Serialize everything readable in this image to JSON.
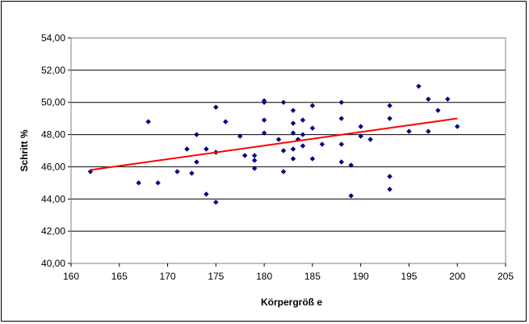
{
  "chart_data": {
    "type": "scatter",
    "title": "",
    "xlabel": "Körpergröß e",
    "ylabel": "Schritt %",
    "xlim": [
      160,
      205
    ],
    "ylim": [
      40,
      54
    ],
    "xticks": [
      "160",
      "165",
      "170",
      "175",
      "180",
      "185",
      "190",
      "195",
      "200",
      "205"
    ],
    "yticks": [
      "40,00",
      "42,00",
      "44,00",
      "46,00",
      "48,00",
      "50,00",
      "52,00",
      "54,00"
    ],
    "grid": "horizontal",
    "legend": "none",
    "marker_color": "#000080",
    "trendline_color": "#ff0000",
    "series": [
      {
        "points": [
          [
            162,
            45.7
          ],
          [
            167,
            45.0
          ],
          [
            168,
            48.8
          ],
          [
            169,
            45.0
          ],
          [
            171,
            45.7
          ],
          [
            172,
            47.1
          ],
          [
            172.5,
            45.6
          ],
          [
            173,
            46.3
          ],
          [
            173,
            48.0
          ],
          [
            174,
            47.1
          ],
          [
            174,
            44.3
          ],
          [
            175,
            49.7
          ],
          [
            175,
            46.9
          ],
          [
            175,
            43.8
          ],
          [
            176,
            48.8
          ],
          [
            177.5,
            47.9
          ],
          [
            178,
            46.7
          ],
          [
            179,
            45.9
          ],
          [
            179,
            46.4
          ],
          [
            179,
            46.7
          ],
          [
            180,
            50.0
          ],
          [
            180,
            50.1
          ],
          [
            180,
            48.9
          ],
          [
            180,
            48.1
          ],
          [
            181.5,
            47.7
          ],
          [
            182,
            50.0
          ],
          [
            182,
            47.0
          ],
          [
            182,
            45.7
          ],
          [
            183,
            49.5
          ],
          [
            183,
            48.7
          ],
          [
            183,
            48.1
          ],
          [
            183,
            47.1
          ],
          [
            183,
            46.5
          ],
          [
            184,
            48.9
          ],
          [
            184,
            47.3
          ],
          [
            184,
            48.0
          ],
          [
            183.5,
            47.7
          ],
          [
            185,
            49.8
          ],
          [
            185,
            48.4
          ],
          [
            185,
            46.5
          ],
          [
            186,
            47.4
          ],
          [
            188,
            50.0
          ],
          [
            188,
            49.0
          ],
          [
            188,
            47.4
          ],
          [
            188,
            46.3
          ],
          [
            189,
            46.1
          ],
          [
            189,
            44.2
          ],
          [
            190,
            48.5
          ],
          [
            190,
            47.9
          ],
          [
            191,
            47.7
          ],
          [
            193,
            49.8
          ],
          [
            193,
            49.0
          ],
          [
            193,
            45.4
          ],
          [
            193,
            44.6
          ],
          [
            195,
            48.2
          ],
          [
            196,
            51.0
          ],
          [
            197,
            50.2
          ],
          [
            197,
            48.2
          ],
          [
            198,
            49.5
          ],
          [
            199,
            50.2
          ],
          [
            200,
            48.5
          ]
        ]
      }
    ],
    "trendline": {
      "start": [
        162,
        45.8
      ],
      "end": [
        200,
        49.0
      ]
    }
  }
}
